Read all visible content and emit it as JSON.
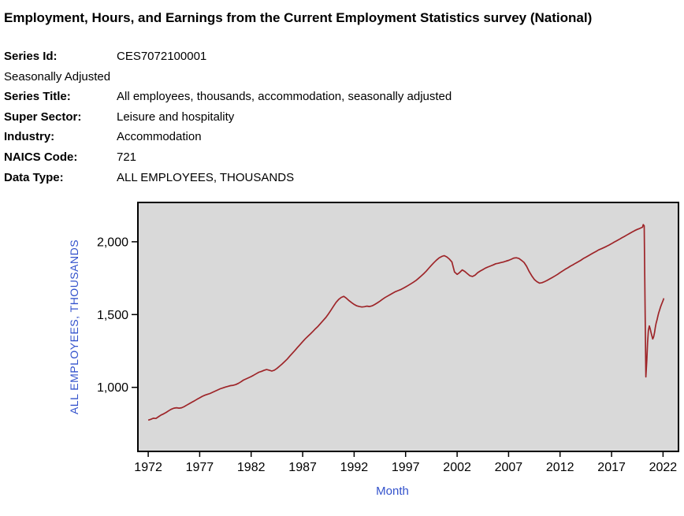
{
  "title": "Employment, Hours, and Earnings from the Current Employment Statistics survey (National)",
  "meta": {
    "seasonal_note": "Seasonally Adjusted",
    "rows": [
      {
        "label": "Series Id:",
        "value": "CES7072100001"
      },
      {
        "label": "Series Title:",
        "value": "All employees, thousands, accommodation, seasonally adjusted"
      },
      {
        "label": "Super Sector:",
        "value": "Leisure and hospitality"
      },
      {
        "label": "Industry:",
        "value": "Accommodation"
      },
      {
        "label": "NAICS Code:",
        "value": "721"
      },
      {
        "label": "Data Type:",
        "value": "ALL EMPLOYEES, THOUSANDS"
      }
    ]
  },
  "chart_data": {
    "type": "line",
    "title": "",
    "xlabel": "Month",
    "ylabel": "ALL EMPLOYEES, THOUSANDS",
    "xlim": [
      1971,
      2023.5
    ],
    "ylim": [
      560,
      2270
    ],
    "xticks": [
      1972,
      1977,
      1982,
      1987,
      1992,
      1997,
      2002,
      2007,
      2012,
      2017,
      2022
    ],
    "yticks": [
      {
        "value": 1000,
        "label": "1,000"
      },
      {
        "value": 1500,
        "label": "1,500"
      },
      {
        "value": 2000,
        "label": "2,000"
      }
    ],
    "grid": false,
    "legend": "none",
    "plot_bg": "#d9d9d9",
    "frame_color": "#000000",
    "line_color": "#9e2529",
    "axis_label_color": "#3352cc",
    "tick_label_color": "#000000",
    "series": [
      {
        "name": "All employees, thousands, accommodation, seasonally adjusted",
        "points": [
          [
            1972,
            775
          ],
          [
            1972.25,
            780
          ],
          [
            1972.5,
            788
          ],
          [
            1972.75,
            786
          ],
          [
            1973,
            798
          ],
          [
            1973.25,
            810
          ],
          [
            1973.5,
            818
          ],
          [
            1973.75,
            828
          ],
          [
            1974,
            840
          ],
          [
            1974.25,
            850
          ],
          [
            1974.5,
            857
          ],
          [
            1974.75,
            860
          ],
          [
            1975,
            857
          ],
          [
            1975.25,
            860
          ],
          [
            1975.5,
            868
          ],
          [
            1975.75,
            878
          ],
          [
            1976,
            888
          ],
          [
            1976.25,
            898
          ],
          [
            1976.5,
            908
          ],
          [
            1976.75,
            918
          ],
          [
            1977,
            928
          ],
          [
            1977.25,
            938
          ],
          [
            1977.5,
            946
          ],
          [
            1977.75,
            952
          ],
          [
            1978,
            958
          ],
          [
            1978.25,
            966
          ],
          [
            1978.5,
            974
          ],
          [
            1978.75,
            982
          ],
          [
            1979,
            990
          ],
          [
            1979.25,
            996
          ],
          [
            1979.5,
            1002
          ],
          [
            1979.75,
            1007
          ],
          [
            1980,
            1012
          ],
          [
            1980.25,
            1014
          ],
          [
            1980.5,
            1019
          ],
          [
            1980.75,
            1027
          ],
          [
            1981,
            1038
          ],
          [
            1981.25,
            1050
          ],
          [
            1981.5,
            1058
          ],
          [
            1981.75,
            1066
          ],
          [
            1982,
            1074
          ],
          [
            1982.25,
            1084
          ],
          [
            1982.5,
            1094
          ],
          [
            1982.75,
            1104
          ],
          [
            1983,
            1110
          ],
          [
            1983.25,
            1117
          ],
          [
            1983.5,
            1122
          ],
          [
            1983.75,
            1118
          ],
          [
            1984,
            1112
          ],
          [
            1984.25,
            1118
          ],
          [
            1984.5,
            1130
          ],
          [
            1984.75,
            1145
          ],
          [
            1985,
            1160
          ],
          [
            1985.25,
            1177
          ],
          [
            1985.5,
            1194
          ],
          [
            1985.75,
            1214
          ],
          [
            1986,
            1234
          ],
          [
            1986.25,
            1254
          ],
          [
            1986.5,
            1274
          ],
          [
            1986.75,
            1294
          ],
          [
            1987,
            1314
          ],
          [
            1987.25,
            1333
          ],
          [
            1987.5,
            1350
          ],
          [
            1987.75,
            1367
          ],
          [
            1988,
            1384
          ],
          [
            1988.25,
            1403
          ],
          [
            1988.5,
            1420
          ],
          [
            1988.75,
            1440
          ],
          [
            1989,
            1460
          ],
          [
            1989.25,
            1480
          ],
          [
            1989.5,
            1504
          ],
          [
            1989.75,
            1530
          ],
          [
            1990,
            1558
          ],
          [
            1990.25,
            1584
          ],
          [
            1990.5,
            1604
          ],
          [
            1990.75,
            1618
          ],
          [
            1991,
            1625
          ],
          [
            1991.25,
            1612
          ],
          [
            1991.5,
            1596
          ],
          [
            1991.75,
            1582
          ],
          [
            1992,
            1570
          ],
          [
            1992.25,
            1560
          ],
          [
            1992.5,
            1555
          ],
          [
            1992.75,
            1552
          ],
          [
            1993,
            1554
          ],
          [
            1993.25,
            1558
          ],
          [
            1993.5,
            1555
          ],
          [
            1993.75,
            1560
          ],
          [
            1994,
            1569
          ],
          [
            1994.25,
            1580
          ],
          [
            1994.5,
            1592
          ],
          [
            1994.75,
            1605
          ],
          [
            1995,
            1617
          ],
          [
            1995.25,
            1627
          ],
          [
            1995.5,
            1637
          ],
          [
            1995.75,
            1647
          ],
          [
            1996,
            1657
          ],
          [
            1996.25,
            1664
          ],
          [
            1996.5,
            1671
          ],
          [
            1996.75,
            1680
          ],
          [
            1997,
            1690
          ],
          [
            1997.25,
            1700
          ],
          [
            1997.5,
            1711
          ],
          [
            1997.75,
            1722
          ],
          [
            1998,
            1734
          ],
          [
            1998.25,
            1749
          ],
          [
            1998.5,
            1764
          ],
          [
            1998.75,
            1780
          ],
          [
            1999,
            1798
          ],
          [
            1999.25,
            1818
          ],
          [
            1999.5,
            1838
          ],
          [
            1999.75,
            1857
          ],
          [
            2000,
            1874
          ],
          [
            2000.25,
            1889
          ],
          [
            2000.5,
            1899
          ],
          [
            2000.75,
            1905
          ],
          [
            2001,
            1896
          ],
          [
            2001.25,
            1881
          ],
          [
            2001.5,
            1861
          ],
          [
            2001.75,
            1792
          ],
          [
            2002,
            1776
          ],
          [
            2002.25,
            1789
          ],
          [
            2002.5,
            1807
          ],
          [
            2002.75,
            1796
          ],
          [
            2003,
            1781
          ],
          [
            2003.25,
            1766
          ],
          [
            2003.5,
            1762
          ],
          [
            2003.75,
            1771
          ],
          [
            2004,
            1788
          ],
          [
            2004.25,
            1799
          ],
          [
            2004.5,
            1809
          ],
          [
            2004.75,
            1819
          ],
          [
            2005,
            1827
          ],
          [
            2005.25,
            1834
          ],
          [
            2005.5,
            1841
          ],
          [
            2005.75,
            1849
          ],
          [
            2006,
            1852
          ],
          [
            2006.25,
            1857
          ],
          [
            2006.5,
            1861
          ],
          [
            2006.75,
            1867
          ],
          [
            2007,
            1872
          ],
          [
            2007.25,
            1880
          ],
          [
            2007.5,
            1888
          ],
          [
            2007.75,
            1890
          ],
          [
            2008,
            1885
          ],
          [
            2008.25,
            1873
          ],
          [
            2008.5,
            1858
          ],
          [
            2008.75,
            1831
          ],
          [
            2009,
            1796
          ],
          [
            2009.25,
            1766
          ],
          [
            2009.5,
            1741
          ],
          [
            2009.75,
            1726
          ],
          [
            2010,
            1716
          ],
          [
            2010.25,
            1719
          ],
          [
            2010.5,
            1726
          ],
          [
            2010.75,
            1735
          ],
          [
            2011,
            1745
          ],
          [
            2011.25,
            1755
          ],
          [
            2011.5,
            1765
          ],
          [
            2011.75,
            1776
          ],
          [
            2012,
            1788
          ],
          [
            2012.25,
            1800
          ],
          [
            2012.5,
            1811
          ],
          [
            2012.75,
            1821
          ],
          [
            2013,
            1832
          ],
          [
            2013.25,
            1842
          ],
          [
            2013.5,
            1852
          ],
          [
            2013.75,
            1862
          ],
          [
            2014,
            1872
          ],
          [
            2014.25,
            1884
          ],
          [
            2014.5,
            1894
          ],
          [
            2014.75,
            1904
          ],
          [
            2015,
            1914
          ],
          [
            2015.25,
            1924
          ],
          [
            2015.5,
            1934
          ],
          [
            2015.75,
            1944
          ],
          [
            2016,
            1952
          ],
          [
            2016.25,
            1960
          ],
          [
            2016.5,
            1968
          ],
          [
            2016.75,
            1977
          ],
          [
            2017,
            1987
          ],
          [
            2017.25,
            1997
          ],
          [
            2017.5,
            2007
          ],
          [
            2017.75,
            2017
          ],
          [
            2018,
            2027
          ],
          [
            2018.25,
            2037
          ],
          [
            2018.5,
            2047
          ],
          [
            2018.75,
            2057
          ],
          [
            2019,
            2067
          ],
          [
            2019.25,
            2077
          ],
          [
            2019.5,
            2085
          ],
          [
            2019.75,
            2092
          ],
          [
            2020,
            2100
          ],
          [
            2020.08,
            2118
          ],
          [
            2020.17,
            2110
          ],
          [
            2020.25,
            1600
          ],
          [
            2020.33,
            1072
          ],
          [
            2020.42,
            1185
          ],
          [
            2020.5,
            1310
          ],
          [
            2020.58,
            1392
          ],
          [
            2020.67,
            1422
          ],
          [
            2020.75,
            1402
          ],
          [
            2020.83,
            1378
          ],
          [
            2020.92,
            1352
          ],
          [
            2021,
            1332
          ],
          [
            2021.08,
            1346
          ],
          [
            2021.17,
            1376
          ],
          [
            2021.25,
            1412
          ],
          [
            2021.33,
            1440
          ],
          [
            2021.42,
            1464
          ],
          [
            2021.5,
            1490
          ],
          [
            2021.58,
            1512
          ],
          [
            2021.67,
            1532
          ],
          [
            2021.75,
            1550
          ],
          [
            2021.83,
            1566
          ],
          [
            2021.92,
            1582
          ],
          [
            2022,
            1596
          ],
          [
            2022.08,
            1612
          ]
        ]
      }
    ]
  }
}
